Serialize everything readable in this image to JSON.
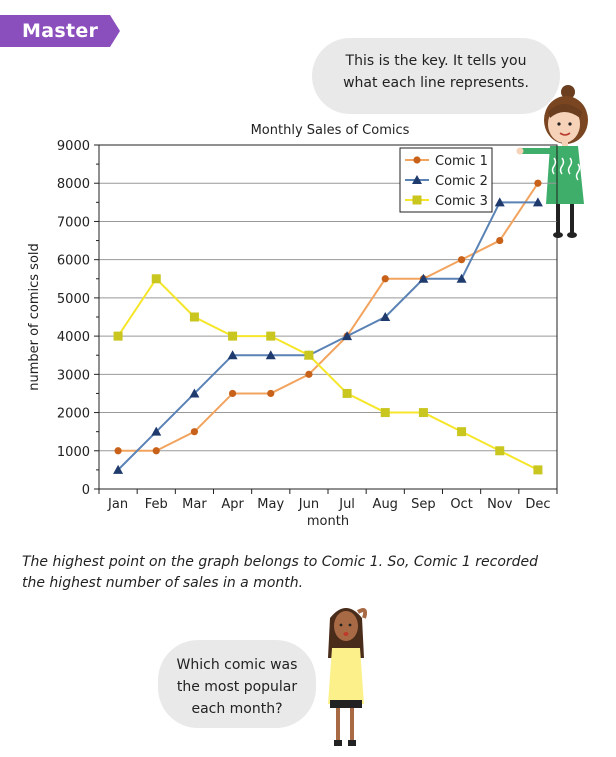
{
  "banner": {
    "label": "Master"
  },
  "bubble_top": {
    "line1": "This is the key. It tells you",
    "line2": "what each line represents."
  },
  "bubble_bottom": {
    "line1": "Which comic was",
    "line2": "the most popular",
    "line3": "each month?"
  },
  "narration": {
    "line1": "The highest point on the graph belongs to Comic 1. So, Comic 1 recorded",
    "line2": "the highest number of sales in a month."
  },
  "colors": {
    "banner": "#8a4fbd",
    "comic1": "#f2a35e",
    "comic2": "#5a82b5",
    "comic3": "#f5e62a"
  },
  "chart_data": {
    "type": "line",
    "title": "Monthly Sales of Comics",
    "xlabel": "month",
    "ylabel": "number of comics sold",
    "categories": [
      "Jan",
      "Feb",
      "Mar",
      "Apr",
      "May",
      "Jun",
      "Jul",
      "Aug",
      "Sep",
      "Oct",
      "Nov",
      "Dec"
    ],
    "yticks": [
      "0",
      "1000",
      "2000",
      "3000",
      "4000",
      "5000",
      "6000",
      "7000",
      "8000",
      "9000"
    ],
    "ylim": [
      0,
      9000
    ],
    "grid": "horizontal",
    "legend_position": "top-right",
    "series": [
      {
        "name": "Comic 1",
        "marker": "circle",
        "color": "#f2a35e",
        "marker_color": "#c8621a",
        "values": [
          1000,
          1000,
          1500,
          2500,
          2500,
          3000,
          4000,
          5500,
          5500,
          6000,
          6500,
          8000
        ]
      },
      {
        "name": "Comic 2",
        "marker": "triangle",
        "color": "#5a82b5",
        "marker_color": "#1f3b6e",
        "values": [
          500,
          1500,
          2500,
          3500,
          3500,
          3500,
          4000,
          4500,
          5500,
          5500,
          7500,
          7500
        ]
      },
      {
        "name": "Comic 3",
        "marker": "square",
        "color": "#f5e62a",
        "marker_color": "#c9c61f",
        "values": [
          4000,
          5500,
          4500,
          4000,
          4000,
          3500,
          2500,
          2000,
          2000,
          1500,
          1000,
          500
        ]
      }
    ]
  }
}
